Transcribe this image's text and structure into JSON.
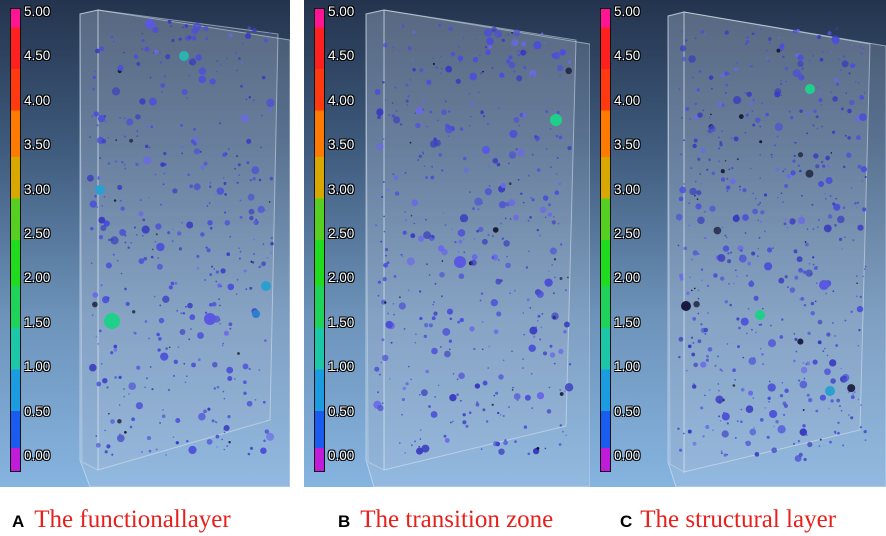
{
  "colorbar": {
    "tick_labels": [
      "5.00",
      "4.50",
      "4.00",
      "3.50",
      "3.00",
      "2.50",
      "2.00",
      "1.50",
      "1.00",
      "0.50",
      "0.00"
    ]
  },
  "panels": [
    {
      "letter": "A",
      "caption": "The functionallayer"
    },
    {
      "letter": "B",
      "caption": "The transition zone"
    },
    {
      "letter": "C",
      "caption": "The structural layer"
    }
  ],
  "colors": {
    "pore_blue": "#4b4fd8",
    "pore_cyan": "#2ab3b0",
    "pore_teal": "#1fd08a",
    "caption_red": "#e8201c"
  }
}
